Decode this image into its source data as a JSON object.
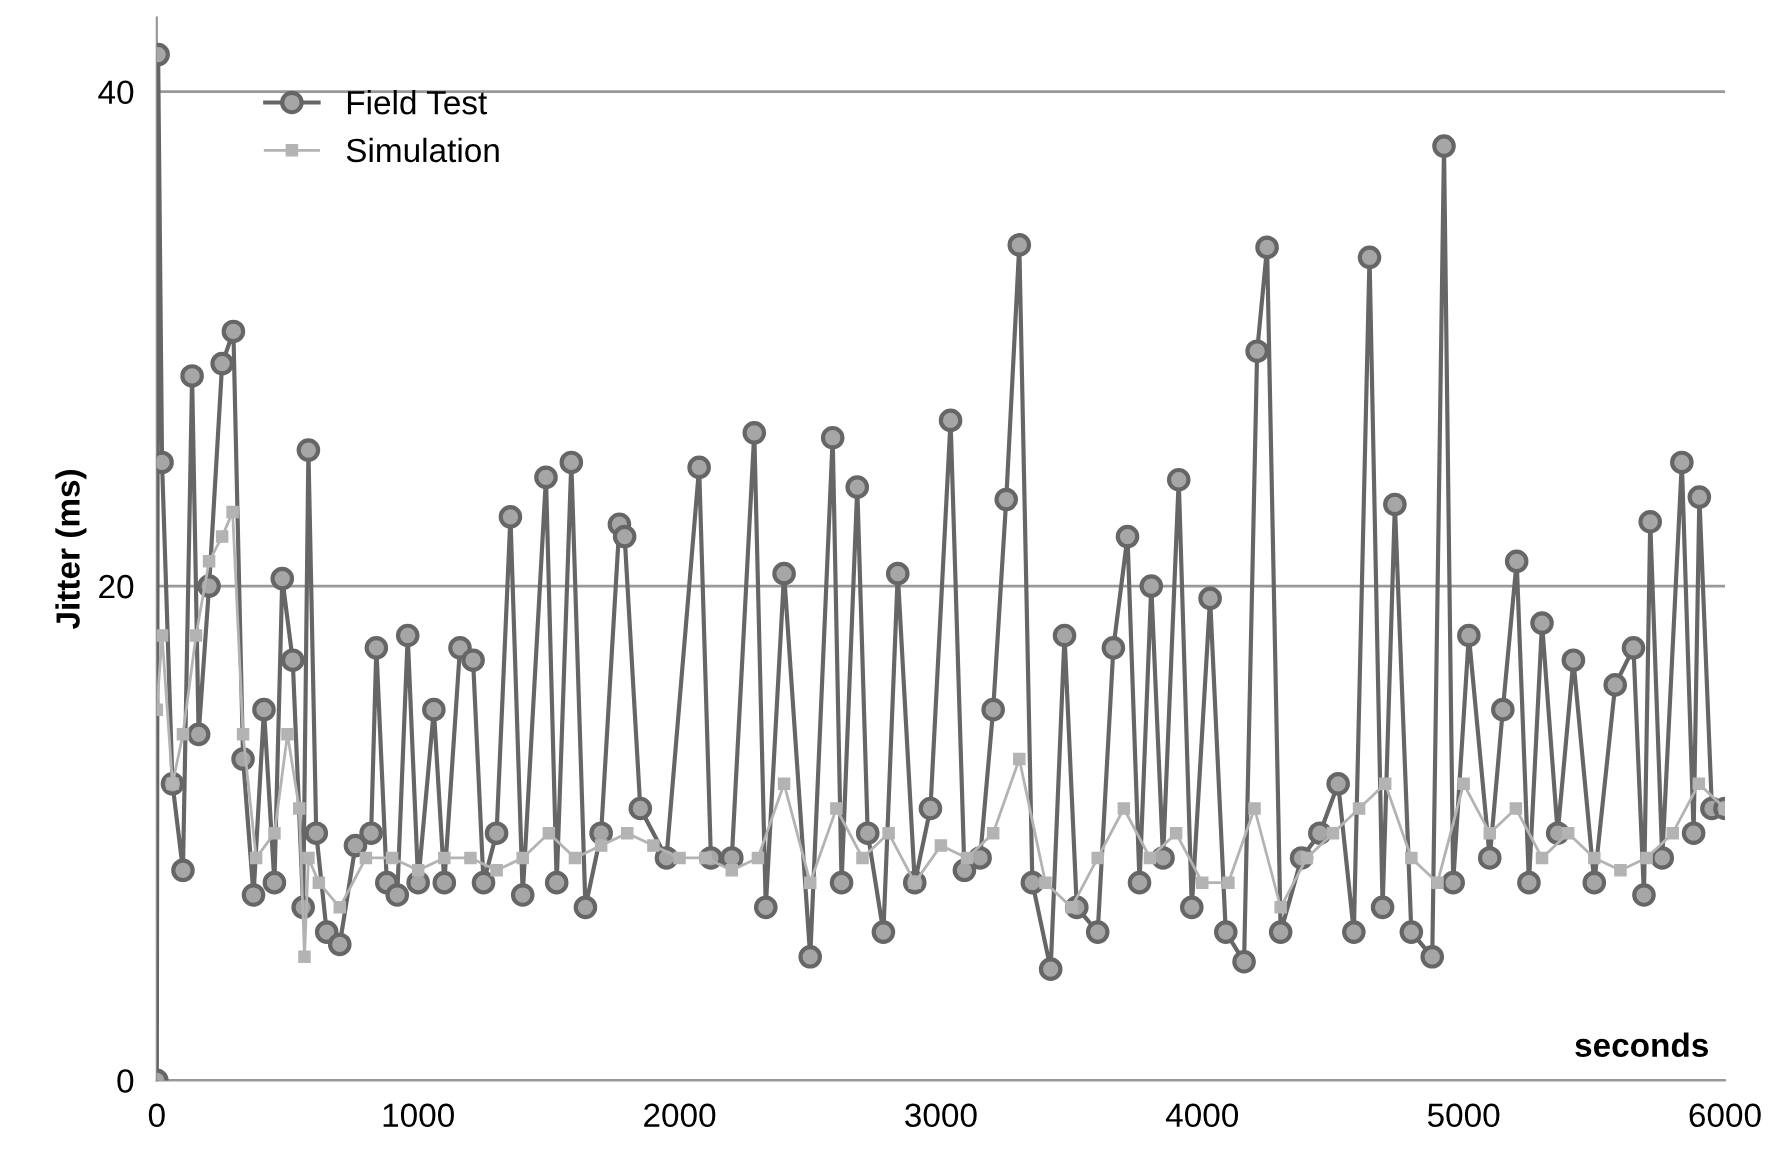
{
  "chart_data": {
    "type": "line",
    "xlabel": "seconds",
    "ylabel": "Jitter (ms)",
    "xlim": [
      0,
      6000
    ],
    "xticks": [
      0,
      1000,
      2000,
      3000,
      4000,
      5000,
      6000
    ],
    "ylim": [
      0,
      43
    ],
    "yticks": [
      0,
      20,
      40
    ],
    "grid": "y",
    "legend": "top left",
    "line_style": "solid",
    "series": [
      {
        "name": "Field Test",
        "color": "#666666",
        "marker": "circle",
        "x": [
          0,
          5,
          20,
          60,
          100,
          135,
          160,
          200,
          250,
          293,
          330,
          370,
          410,
          450,
          480,
          520,
          560,
          580,
          610,
          650,
          700,
          760,
          820,
          840,
          880,
          920,
          960,
          1000,
          1060,
          1100,
          1160,
          1210,
          1250,
          1300,
          1353,
          1400,
          1489,
          1530,
          1586,
          1640,
          1700,
          1770,
          1790,
          1850,
          1950,
          2075,
          2120,
          2200,
          2286,
          2330,
          2400,
          2500,
          2586,
          2620,
          2680,
          2720,
          2780,
          2835,
          2900,
          2960,
          3037,
          3090,
          3150,
          3200,
          3250,
          3300,
          3350,
          3420,
          3473,
          3520,
          3600,
          3660,
          3714,
          3760,
          3805,
          3850,
          3910,
          3960,
          4030,
          4090,
          4160,
          4210,
          4248,
          4300,
          4380,
          4450,
          4520,
          4580,
          4640,
          4690,
          4737,
          4800,
          4880,
          4925,
          4960,
          5020,
          5100,
          5150,
          5203,
          5250,
          5300,
          5360,
          5420,
          5500,
          5580,
          5650,
          5690,
          5714,
          5760,
          5835,
          5880,
          5902,
          5950,
          6000
        ],
        "values": [
          0,
          41.5,
          25,
          12,
          8.5,
          28.5,
          14,
          20,
          29,
          30.3,
          13,
          7.5,
          15,
          8,
          20.3,
          17,
          7,
          25.5,
          10,
          6,
          5.5,
          9.5,
          10,
          17.5,
          8,
          7.5,
          18,
          8,
          15,
          8,
          17.5,
          17,
          8,
          10,
          22.8,
          7.5,
          24.4,
          8,
          25,
          7,
          10,
          22.5,
          22,
          11,
          9,
          24.8,
          9,
          9,
          26.2,
          7,
          20.5,
          5,
          26,
          8,
          24,
          10,
          6,
          20.5,
          8,
          11,
          26.7,
          8.5,
          9,
          15,
          23.5,
          33.8,
          8,
          4.5,
          18,
          7,
          6,
          17.5,
          22,
          8,
          20,
          9,
          24.3,
          7,
          19.5,
          6,
          4.8,
          29.5,
          33.7,
          6,
          9,
          10,
          12,
          6,
          33.3,
          7,
          23.3,
          6,
          5,
          37.8,
          8,
          18,
          9,
          15,
          21,
          8,
          18.5,
          10,
          17,
          8,
          16,
          17.5,
          7.5,
          22.6,
          9,
          25,
          10,
          23.6,
          11,
          11
        ]
      },
      {
        "name": "Simulation",
        "color": "#b3b3b3",
        "marker": "square",
        "x": [
          0,
          20,
          60,
          100,
          150,
          200,
          250,
          290,
          330,
          380,
          450,
          500,
          545,
          565,
          580,
          620,
          700,
          800,
          900,
          1000,
          1100,
          1200,
          1300,
          1400,
          1500,
          1600,
          1700,
          1800,
          1900,
          2000,
          2100,
          2200,
          2300,
          2400,
          2500,
          2600,
          2700,
          2800,
          2900,
          3000,
          3100,
          3200,
          3300,
          3400,
          3500,
          3600,
          3700,
          3800,
          3900,
          4000,
          4100,
          4200,
          4300,
          4400,
          4500,
          4600,
          4700,
          4800,
          4900,
          5000,
          5100,
          5200,
          5300,
          5400,
          5500,
          5600,
          5700,
          5800,
          5900,
          6000
        ],
        "values": [
          15,
          18,
          12,
          14,
          18,
          21,
          22,
          23,
          14,
          9,
          10,
          14,
          11,
          5,
          9,
          8,
          7,
          9,
          9,
          8.5,
          9,
          9,
          8.5,
          9,
          10,
          9,
          9.5,
          10,
          9.5,
          9,
          9,
          8.5,
          9,
          12,
          8,
          11,
          9,
          10,
          8,
          9.5,
          9,
          10,
          13,
          8,
          7,
          9,
          11,
          9,
          10,
          8,
          8,
          11,
          7,
          9,
          10,
          11,
          12,
          9,
          8,
          12,
          10,
          11,
          9,
          10,
          9,
          8.5,
          9,
          10,
          12,
          11
        ]
      }
    ]
  }
}
